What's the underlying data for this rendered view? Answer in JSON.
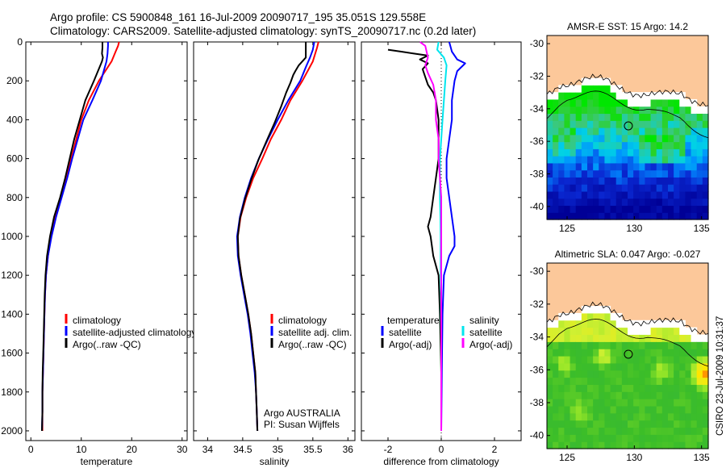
{
  "header": {
    "line1": "Argo profile: CS 5900848_161 16-Jul-2009 20090717_195 35.051S 129.558E",
    "line2": "Climatology: CARS2009. Satellite-adjusted climatology: synTS_20090717.nc (0.2d later)"
  },
  "side_stamp": "CSIRO 23-Jul-2009 10:31:37",
  "colors": {
    "climatology": "#ff0000",
    "satellite": "#0000ff",
    "argo": "#000000",
    "cyan": "#00e5ee",
    "magenta": "#ff00ff",
    "land": "#fcc89a"
  },
  "chart_data": [
    {
      "type": "line",
      "id": "temperature",
      "xlabel": "temperature",
      "ylabel": "",
      "xlim": [
        -1,
        31
      ],
      "ylim": [
        2050,
        0
      ],
      "xticks": [
        0,
        10,
        20,
        30
      ],
      "yticks": [
        0,
        200,
        400,
        600,
        800,
        1000,
        1200,
        1400,
        1600,
        1800,
        2000
      ],
      "legend": [
        "climatology",
        "satellite-adjusted climatology",
        "Argo(..raw -QC)"
      ],
      "series": [
        {
          "name": "climatology",
          "color": "#ff0000",
          "points": [
            [
              17.5,
              0
            ],
            [
              17.3,
              20
            ],
            [
              16.8,
              50
            ],
            [
              16.0,
              100
            ],
            [
              13.5,
              200
            ],
            [
              11.5,
              300
            ],
            [
              10.0,
              400
            ],
            [
              9.0,
              500
            ],
            [
              8.0,
              600
            ],
            [
              7.0,
              700
            ],
            [
              6.0,
              800
            ],
            [
              4.9,
              900
            ],
            [
              4.0,
              1000
            ],
            [
              3.4,
              1100
            ],
            [
              3.0,
              1200
            ],
            [
              2.8,
              1300
            ],
            [
              2.7,
              1400
            ],
            [
              2.6,
              1500
            ],
            [
              2.5,
              1600
            ],
            [
              2.4,
              1700
            ],
            [
              2.3,
              1800
            ],
            [
              2.3,
              1900
            ],
            [
              2.3,
              2000
            ]
          ]
        },
        {
          "name": "satellite-adjusted climatology",
          "color": "#0000ff",
          "points": [
            [
              15.3,
              0
            ],
            [
              15.3,
              20
            ],
            [
              15.2,
              60
            ],
            [
              15.0,
              100
            ],
            [
              13.9,
              200
            ],
            [
              12.2,
              300
            ],
            [
              10.4,
              400
            ],
            [
              9.3,
              500
            ],
            [
              8.2,
              600
            ],
            [
              7.2,
              700
            ],
            [
              6.1,
              800
            ],
            [
              5.0,
              900
            ],
            [
              4.1,
              1000
            ],
            [
              3.4,
              1100
            ],
            [
              3.0,
              1200
            ],
            [
              2.8,
              1300
            ],
            [
              2.7,
              1400
            ],
            [
              2.6,
              1500
            ],
            [
              2.5,
              1600
            ],
            [
              2.4,
              1700
            ],
            [
              2.3,
              1800
            ],
            [
              2.3,
              1900
            ],
            [
              2.2,
              2000
            ]
          ]
        },
        {
          "name": "Argo(..raw -QC)",
          "color": "#000000",
          "points": [
            [
              14.2,
              0
            ],
            [
              14.2,
              30
            ],
            [
              14.1,
              60
            ],
            [
              14.3,
              80
            ],
            [
              14.1,
              100
            ],
            [
              12.5,
              200
            ],
            [
              10.8,
              300
            ],
            [
              9.7,
              400
            ],
            [
              8.6,
              500
            ],
            [
              7.7,
              600
            ],
            [
              6.8,
              700
            ],
            [
              5.8,
              800
            ],
            [
              4.6,
              900
            ],
            [
              3.8,
              1000
            ],
            [
              3.2,
              1100
            ],
            [
              2.9,
              1200
            ],
            [
              2.75,
              1300
            ],
            [
              2.65,
              1400
            ],
            [
              2.55,
              1500
            ],
            [
              2.45,
              1600
            ],
            [
              2.35,
              1700
            ],
            [
              2.3,
              1800
            ],
            [
              2.3,
              1900
            ],
            [
              2.2,
              2000
            ]
          ]
        }
      ]
    },
    {
      "type": "line",
      "id": "salinity",
      "xlabel": "salinity",
      "ylabel": "",
      "xlim": [
        33.8,
        36.1
      ],
      "ylim": [
        2050,
        0
      ],
      "xticks": [
        34,
        34.5,
        35,
        35.5,
        36
      ],
      "yticks": [
        0,
        200,
        400,
        600,
        800,
        1000,
        1200,
        1400,
        1600,
        1800,
        2000
      ],
      "legend": [
        "climatology",
        "satellite adj. clim.",
        "Argo(..raw -QC)"
      ],
      "annotation": [
        "Argo AUSTRALIA",
        "PI: Susan Wijffels"
      ],
      "series": [
        {
          "name": "climatology",
          "color": "#ff0000",
          "points": [
            [
              35.58,
              0
            ],
            [
              35.56,
              30
            ],
            [
              35.5,
              100
            ],
            [
              35.35,
              200
            ],
            [
              35.18,
              300
            ],
            [
              35.05,
              400
            ],
            [
              34.9,
              500
            ],
            [
              34.78,
              600
            ],
            [
              34.65,
              700
            ],
            [
              34.55,
              800
            ],
            [
              34.47,
              900
            ],
            [
              34.43,
              1000
            ],
            [
              34.44,
              1100
            ],
            [
              34.48,
              1200
            ],
            [
              34.53,
              1300
            ],
            [
              34.58,
              1400
            ],
            [
              34.62,
              1500
            ],
            [
              34.65,
              1600
            ],
            [
              34.68,
              1700
            ],
            [
              34.69,
              1800
            ],
            [
              34.7,
              1900
            ],
            [
              34.71,
              2000
            ]
          ]
        },
        {
          "name": "satellite adj. clim.",
          "color": "#0000ff",
          "points": [
            [
              35.52,
              0
            ],
            [
              35.5,
              40
            ],
            [
              35.46,
              80
            ],
            [
              35.4,
              130
            ],
            [
              35.32,
              200
            ],
            [
              35.15,
              300
            ],
            [
              35.0,
              400
            ],
            [
              34.86,
              500
            ],
            [
              34.73,
              600
            ],
            [
              34.62,
              700
            ],
            [
              34.53,
              800
            ],
            [
              34.46,
              900
            ],
            [
              34.42,
              1000
            ],
            [
              34.43,
              1100
            ],
            [
              34.47,
              1200
            ],
            [
              34.52,
              1300
            ],
            [
              34.57,
              1400
            ],
            [
              34.61,
              1500
            ],
            [
              34.64,
              1600
            ],
            [
              34.67,
              1700
            ],
            [
              34.69,
              1800
            ],
            [
              34.7,
              1900
            ],
            [
              34.71,
              2000
            ]
          ]
        },
        {
          "name": "Argo(..raw -QC)",
          "color": "#000000",
          "points": [
            [
              35.4,
              0
            ],
            [
              35.4,
              80
            ],
            [
              35.35,
              100
            ],
            [
              35.3,
              120
            ],
            [
              35.25,
              150
            ],
            [
              35.22,
              170
            ],
            [
              35.18,
              210
            ],
            [
              35.12,
              260
            ],
            [
              35.05,
              330
            ],
            [
              34.95,
              420
            ],
            [
              34.84,
              510
            ],
            [
              34.72,
              610
            ],
            [
              34.62,
              710
            ],
            [
              34.53,
              810
            ],
            [
              34.46,
              910
            ],
            [
              34.43,
              1000
            ],
            [
              34.44,
              1100
            ],
            [
              34.48,
              1200
            ],
            [
              34.53,
              1300
            ],
            [
              34.58,
              1400
            ],
            [
              34.62,
              1500
            ],
            [
              34.65,
              1600
            ],
            [
              34.68,
              1700
            ],
            [
              34.69,
              1800
            ],
            [
              34.7,
              1900
            ],
            [
              34.71,
              2000
            ]
          ]
        }
      ]
    },
    {
      "type": "line",
      "id": "difference",
      "xlabel": "difference from climatology",
      "ylabel": "",
      "xlim": [
        -3,
        3
      ],
      "ylim": [
        2050,
        0
      ],
      "xticks": [
        -2,
        0,
        2
      ],
      "xticklabels": [
        "-2",
        "0",
        "2"
      ],
      "yticks": [
        0,
        200,
        400,
        600,
        800,
        1000,
        1200,
        1400,
        1600,
        1800,
        2000
      ],
      "legend_left_title": "temperature",
      "legend_right_title": "salinity",
      "legend_left": [
        "satellite",
        "Argo(-adj)"
      ],
      "legend_right": [
        "satellite",
        "Argo(-adj)"
      ],
      "series": [
        {
          "name": "temperature satellite",
          "color": "#0000ff",
          "points": [
            [
              0.3,
              0
            ],
            [
              0.4,
              50
            ],
            [
              0.6,
              90
            ],
            [
              0.9,
              110
            ],
            [
              0.6,
              150
            ],
            [
              0.5,
              200
            ],
            [
              0.4,
              300
            ],
            [
              0.4,
              400
            ],
            [
              0.3,
              500
            ],
            [
              0.2,
              600
            ],
            [
              0.2,
              700
            ],
            [
              0.3,
              800
            ],
            [
              0.4,
              900
            ],
            [
              0.5,
              1000
            ],
            [
              0.5,
              1050
            ],
            [
              0.3,
              1100
            ],
            [
              0.1,
              1200
            ],
            [
              0.05,
              1400
            ],
            [
              0.02,
              1700
            ],
            [
              0.0,
              2000
            ]
          ]
        },
        {
          "name": "temperature Argo(-adj)",
          "color": "#000000",
          "points": [
            [
              -2.0,
              40
            ],
            [
              -1.5,
              50
            ],
            [
              -1.0,
              60
            ],
            [
              -0.5,
              70
            ],
            [
              -0.8,
              90
            ],
            [
              -0.5,
              110
            ],
            [
              -0.7,
              140
            ],
            [
              -0.6,
              180
            ],
            [
              -0.5,
              220
            ],
            [
              -0.3,
              260
            ],
            [
              -0.2,
              300
            ],
            [
              -0.1,
              400
            ],
            [
              -0.1,
              500
            ],
            [
              -0.1,
              600
            ],
            [
              -0.2,
              700
            ],
            [
              -0.3,
              800
            ],
            [
              -0.4,
              900
            ],
            [
              -0.5,
              950
            ],
            [
              -0.4,
              1000
            ],
            [
              -0.3,
              1100
            ],
            [
              -0.1,
              1200
            ],
            [
              -0.05,
              1400
            ],
            [
              0.0,
              1700
            ],
            [
              0.0,
              2000
            ]
          ]
        },
        {
          "name": "salinity satellite",
          "color": "#00e5ee",
          "points": [
            [
              -0.1,
              0
            ],
            [
              -0.15,
              40
            ],
            [
              0.1,
              80
            ],
            [
              0.2,
              120
            ],
            [
              0.15,
              200
            ],
            [
              0.1,
              300
            ],
            [
              0.05,
              400
            ],
            [
              0.0,
              500
            ],
            [
              -0.05,
              600
            ],
            [
              -0.05,
              700
            ],
            [
              -0.05,
              800
            ],
            [
              -0.03,
              900
            ],
            [
              -0.02,
              1000
            ],
            [
              -0.02,
              1200
            ],
            [
              0.0,
              1500
            ],
            [
              0.0,
              1700
            ],
            [
              0.0,
              2000
            ]
          ]
        },
        {
          "name": "salinity Argo(-adj)",
          "color": "#ff00ff",
          "points": [
            [
              -0.8,
              0
            ],
            [
              -0.6,
              20
            ],
            [
              -0.5,
              80
            ],
            [
              -0.6,
              120
            ],
            [
              -0.5,
              160
            ],
            [
              -0.3,
              220
            ],
            [
              -0.2,
              300
            ],
            [
              -0.2,
              400
            ],
            [
              -0.1,
              500
            ],
            [
              -0.1,
              600
            ],
            [
              0.0,
              800
            ],
            [
              0.0,
              1000
            ],
            [
              0.0,
              1200
            ],
            [
              0.0,
              1500
            ],
            [
              0.0,
              1700
            ],
            [
              0.0,
              2000
            ]
          ]
        }
      ]
    },
    {
      "type": "heatmap",
      "id": "sst-map",
      "title": "AMSR-E SST: 15 Argo: 14.2",
      "xlim": [
        123.5,
        135.5
      ],
      "ylim": [
        -40.8,
        -29.5
      ],
      "xticks": [
        125,
        130,
        135
      ],
      "yticks": [
        -30,
        -32,
        -34,
        -36,
        -38,
        -40
      ],
      "argo_position": [
        129.558,
        -35.051
      ]
    },
    {
      "type": "heatmap",
      "id": "sla-map",
      "title": "Altimetric SLA: 0.047 Argo: -0.027",
      "xlim": [
        123.5,
        135.5
      ],
      "ylim": [
        -40.8,
        -29.5
      ],
      "xticks": [
        125,
        130,
        135
      ],
      "yticks": [
        -30,
        -32,
        -34,
        -36,
        -38,
        -40
      ],
      "argo_position": [
        129.558,
        -35.051
      ]
    }
  ]
}
